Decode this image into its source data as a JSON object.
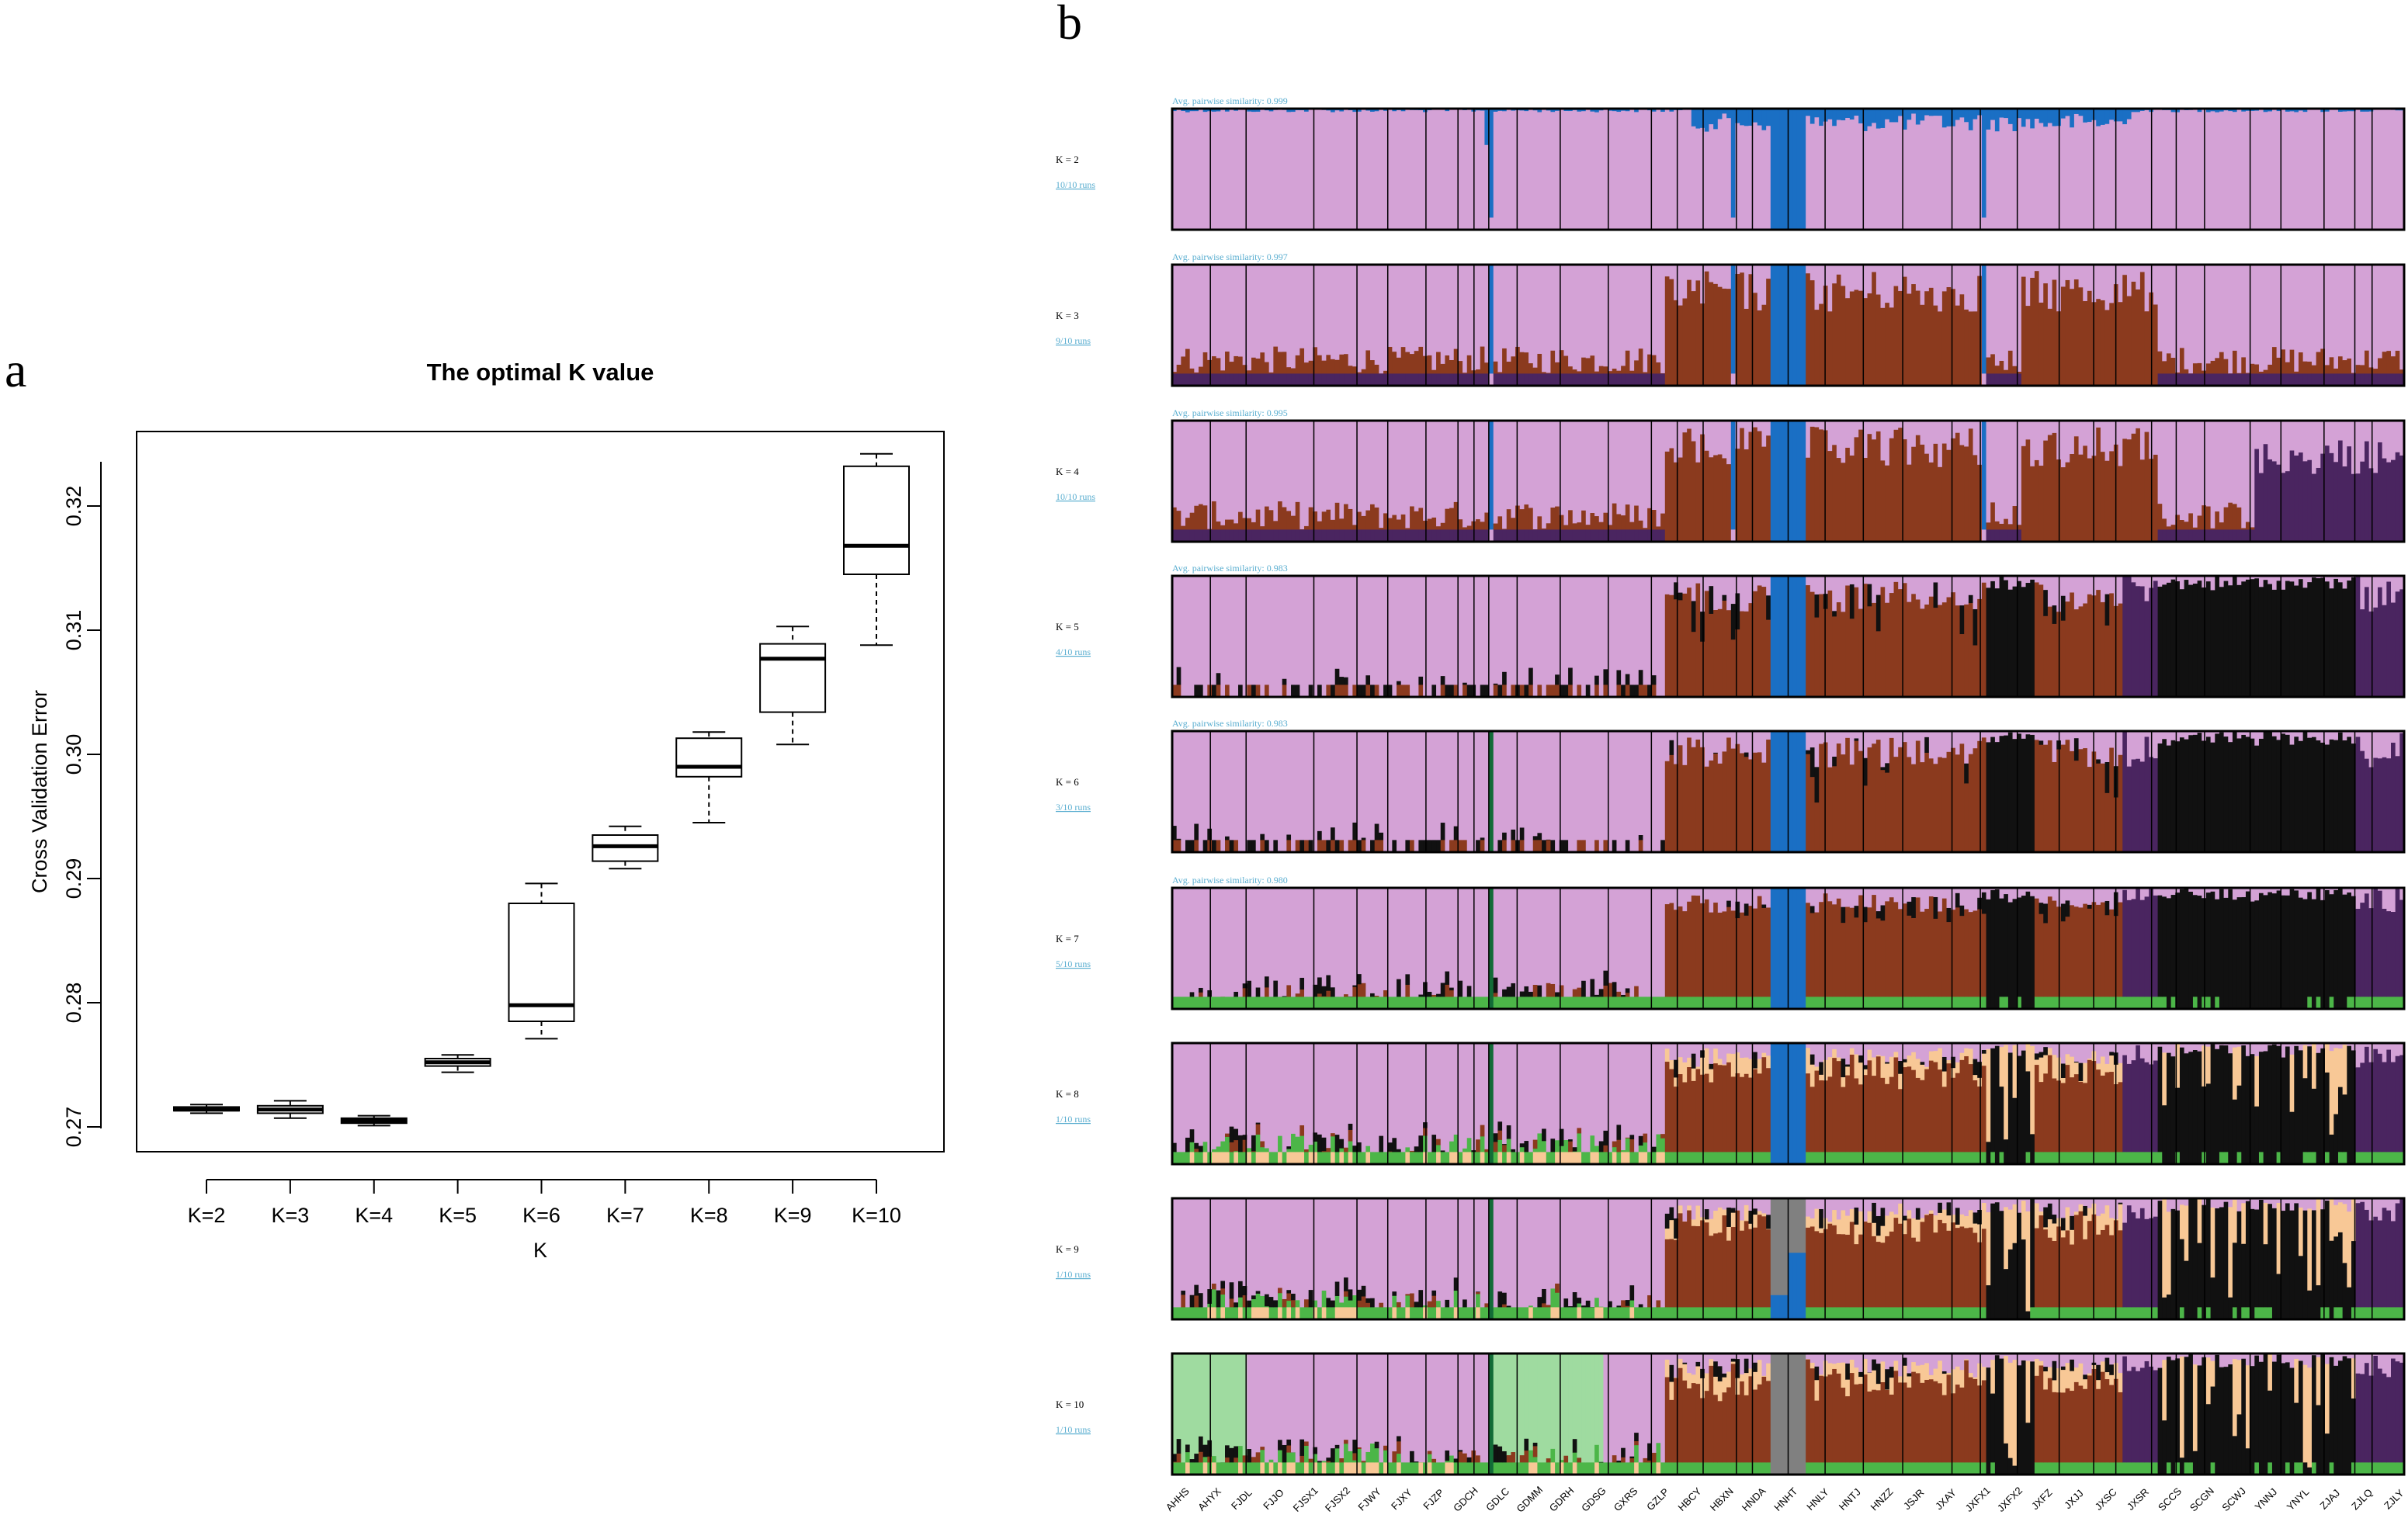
{
  "panels": {
    "a": "a",
    "b": "b"
  },
  "chart_data": [
    {
      "type": "box",
      "title": "The optimal K value",
      "xlabel": "K",
      "ylabel": "Cross Validation Error",
      "ylim": [
        0.268,
        0.326
      ],
      "yticks": [
        "0.27",
        "0.28",
        "0.29",
        "0.30",
        "0.31",
        "0.32"
      ],
      "categories": [
        "K=2",
        "K=3",
        "K=4",
        "K=5",
        "K=6",
        "K=7",
        "K=8",
        "K=9",
        "K=10"
      ],
      "boxes": [
        {
          "min": 0.2711,
          "q1": 0.2713,
          "median": 0.2714,
          "q3": 0.2716,
          "max": 0.2718
        },
        {
          "min": 0.2707,
          "q1": 0.2711,
          "median": 0.2714,
          "q3": 0.2717,
          "max": 0.2721
        },
        {
          "min": 0.2701,
          "q1": 0.2703,
          "median": 0.2705,
          "q3": 0.2707,
          "max": 0.2709
        },
        {
          "min": 0.2744,
          "q1": 0.2749,
          "median": 0.2752,
          "q3": 0.2755,
          "max": 0.2758
        },
        {
          "min": 0.2771,
          "q1": 0.2785,
          "median": 0.2798,
          "q3": 0.288,
          "max": 0.2896
        },
        {
          "min": 0.2908,
          "q1": 0.2914,
          "median": 0.2926,
          "q3": 0.2935,
          "max": 0.2942
        },
        {
          "min": 0.2945,
          "q1": 0.2982,
          "median": 0.299,
          "q3": 0.3013,
          "max": 0.3018
        },
        {
          "min": 0.3008,
          "q1": 0.3034,
          "median": 0.3077,
          "q3": 0.3089,
          "max": 0.3103
        },
        {
          "min": 0.3088,
          "q1": 0.3145,
          "median": 0.3168,
          "q3": 0.3232,
          "max": 0.3242
        }
      ]
    },
    {
      "type": "stacked-bar",
      "description": "Admixture / cluster membership plots for K=2 to K=10",
      "colors": [
        "#d4a2d6",
        "#1a6fc4",
        "#8b3a1e",
        "#4a2560",
        "#111111",
        "#126b37",
        "#4cb648",
        "#f8c896",
        "#808080",
        "#9fdba0"
      ],
      "rows": [
        {
          "k": "K = 2",
          "runs": "10/10 runs",
          "similarity": "Avg. pairwise similarity: 0.999"
        },
        {
          "k": "K = 3",
          "runs": "9/10 runs",
          "similarity": "Avg. pairwise similarity: 0.997"
        },
        {
          "k": "K = 4",
          "runs": "10/10 runs",
          "similarity": "Avg. pairwise similarity: 0.995"
        },
        {
          "k": "K = 5",
          "runs": "4/10 runs",
          "similarity": "Avg. pairwise similarity: 0.983"
        },
        {
          "k": "K = 6",
          "runs": "3/10 runs",
          "similarity": "Avg. pairwise similarity: 0.983"
        },
        {
          "k": "K = 7",
          "runs": "5/10 runs",
          "similarity": "Avg. pairwise similarity: 0.980"
        },
        {
          "k": "K = 8",
          "runs": "1/10 runs",
          "similarity": ""
        },
        {
          "k": "K = 9",
          "runs": "1/10 runs",
          "similarity": ""
        },
        {
          "k": "K = 10",
          "runs": "1/10 runs",
          "similarity": ""
        }
      ],
      "populations": [
        "AHHS",
        "AHYX",
        "FJDL",
        "FJJO",
        "FJSX1",
        "FJSX2",
        "FJWY",
        "FJXY",
        "FJZP",
        "GDCH",
        "GDLC",
        "GDMM",
        "GDRH",
        "GDSG",
        "GXRS",
        "GZLP",
        "HBCY",
        "HBXN",
        "HNDA",
        "HNHT",
        "HNLY",
        "HNTJ",
        "HNZZ",
        "JSJR",
        "JXAY",
        "JXFX1",
        "JXFX2",
        "JXFZ",
        "JXJJ",
        "JXSC",
        "JXSR",
        "SCCS",
        "SCGN",
        "SCWJ",
        "YNNJ",
        "YNYL",
        "ZJAJ",
        "ZJLQ",
        "ZJLY"
      ]
    }
  ]
}
